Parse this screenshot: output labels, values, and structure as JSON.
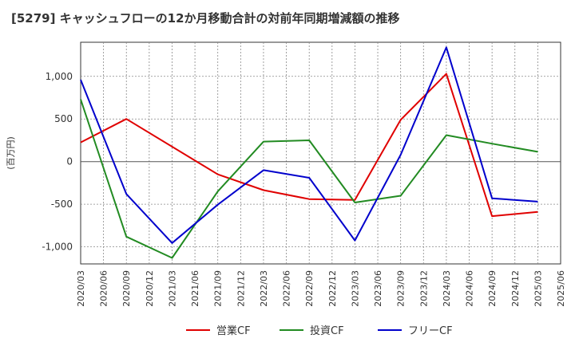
{
  "chart_data": {
    "type": "line",
    "title": "[5279]  キャッシュフローの12か月移動合計の対前年同期増減額の推移",
    "ylabel": "(百万円)",
    "xlabel": "",
    "ylim": [
      -1200,
      1400
    ],
    "yticks": [
      1000,
      500,
      0,
      -500,
      -1000
    ],
    "ytick_labels": [
      "1,000",
      "500",
      "0",
      "-500",
      "-1,000"
    ],
    "x_ticks": [
      "2020/03",
      "2020/06",
      "2020/09",
      "2020/12",
      "2021/03",
      "2021/06",
      "2021/09",
      "2021/12",
      "2022/03",
      "2022/06",
      "2022/09",
      "2022/12",
      "2023/03",
      "2023/06",
      "2023/09",
      "2023/12",
      "2024/03",
      "2024/06",
      "2024/09",
      "2024/12",
      "2025/03",
      "2025/06"
    ],
    "grid": true,
    "legend_position": "bottom",
    "series": [
      {
        "name": "営業CF",
        "color": "#e00000",
        "x": [
          "2020/03",
          "2020/09",
          "2021/09",
          "2022/03",
          "2022/09",
          "2023/03",
          "2023/09",
          "2024/03",
          "2024/09",
          "2025/03"
        ],
        "values": [
          225,
          500,
          -150,
          -335,
          -440,
          -450,
          490,
          1030,
          -640,
          -590
        ]
      },
      {
        "name": "投資CF",
        "color": "#228b22",
        "x": [
          "2020/03",
          "2020/09",
          "2021/03",
          "2021/09",
          "2022/03",
          "2022/09",
          "2023/03",
          "2023/09",
          "2024/03",
          "2024/09",
          "2025/03"
        ],
        "values": [
          730,
          -880,
          -1130,
          -350,
          235,
          250,
          -480,
          -400,
          310,
          210,
          115
        ]
      },
      {
        "name": "フリーCF",
        "color": "#0000cc",
        "x": [
          "2020/03",
          "2020/09",
          "2021/03",
          "2021/09",
          "2022/03",
          "2022/09",
          "2023/03",
          "2023/09",
          "2024/03",
          "2024/09",
          "2025/03"
        ],
        "values": [
          960,
          -380,
          -955,
          -505,
          -100,
          -190,
          -925,
          80,
          1340,
          -430,
          -470
        ]
      }
    ]
  }
}
